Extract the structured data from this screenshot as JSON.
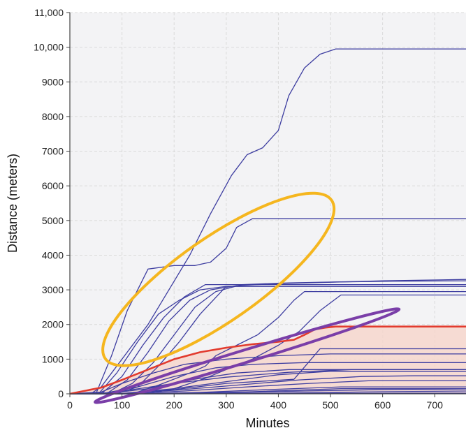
{
  "chart_data": {
    "type": "line",
    "xlabel": "Minutes",
    "ylabel": "Distance (meters)",
    "xlim": [
      0,
      760
    ],
    "ylim": [
      0,
      11000
    ],
    "grid": true,
    "x_ticks": [
      0,
      100,
      200,
      300,
      400,
      500,
      600,
      700
    ],
    "x_tick_labels": [
      "0",
      "100",
      "200",
      "300",
      "400",
      "500",
      "600",
      "700"
    ],
    "y_ticks": [
      0,
      1000,
      2000,
      3000,
      4000,
      5000,
      6000,
      7000,
      8000,
      9000,
      10000,
      11000
    ],
    "y_tick_labels": [
      "0",
      "1000",
      "2000",
      "3000",
      "4000",
      "5000",
      "6000",
      "7000",
      "8000",
      "9000",
      "10,000",
      "11,000"
    ],
    "colors": {
      "series": "#3d3da0",
      "highlight": "#e23b2e",
      "shade": "#f6d6cc",
      "orange_ellipse": "#f5b61e",
      "purple_ellipse": "#7a3ea8",
      "plot_background": "#f3f3f5",
      "grid": "#dadada"
    },
    "highlight_series": {
      "name": "highlighted",
      "x": [
        0,
        60,
        100,
        150,
        200,
        250,
        300,
        350,
        400,
        430,
        450,
        470,
        490,
        510,
        760
      ],
      "y": [
        0,
        180,
        400,
        700,
        1000,
        1200,
        1330,
        1430,
        1500,
        1560,
        1700,
        1860,
        1910,
        1940,
        1940
      ]
    },
    "series": [
      {
        "name": "s1",
        "x": [
          0,
          40,
          60,
          80,
          110,
          150,
          190,
          230,
          270,
          310,
          340,
          370,
          400,
          420,
          450,
          480,
          510,
          760
        ],
        "y": [
          0,
          0,
          200,
          600,
          1200,
          2000,
          3000,
          4000,
          5200,
          6300,
          6900,
          7100,
          7600,
          8600,
          9400,
          9800,
          9950,
          9950
        ]
      },
      {
        "name": "s2",
        "x": [
          0,
          50,
          80,
          110,
          150,
          200,
          240,
          270,
          300,
          320,
          350,
          760
        ],
        "y": [
          0,
          0,
          1100,
          2400,
          3600,
          3700,
          3700,
          3800,
          4200,
          4800,
          5050,
          5050
        ]
      },
      {
        "name": "s3",
        "x": [
          0,
          55,
          90,
          130,
          170,
          210,
          250,
          300,
          760
        ],
        "y": [
          0,
          0,
          600,
          1500,
          2300,
          2700,
          3000,
          3100,
          3100
        ]
      },
      {
        "name": "s4",
        "x": [
          0,
          60,
          100,
          140,
          180,
          220,
          260,
          760
        ],
        "y": [
          0,
          0,
          500,
          1400,
          2200,
          2800,
          3150,
          3150
        ]
      },
      {
        "name": "s5",
        "x": [
          0,
          70,
          110,
          150,
          190,
          230,
          270,
          320,
          400,
          500,
          600,
          760
        ],
        "y": [
          0,
          0,
          400,
          1200,
          2100,
          2700,
          3000,
          3120,
          3180,
          3220,
          3260,
          3300
        ]
      },
      {
        "name": "s6",
        "x": [
          0,
          80,
          120,
          160,
          200,
          240,
          280,
          330,
          420,
          520,
          620,
          760
        ],
        "y": [
          0,
          0,
          300,
          900,
          1700,
          2500,
          2950,
          3150,
          3200,
          3230,
          3250,
          3260
        ]
      },
      {
        "name": "s7",
        "x": [
          0,
          90,
          130,
          170,
          210,
          250,
          300,
          760
        ],
        "y": [
          0,
          0,
          200,
          800,
          1500,
          2300,
          3100,
          3100
        ]
      },
      {
        "name": "s8",
        "x": [
          0,
          120,
          170,
          230,
          260,
          280,
          320,
          360,
          400,
          430,
          450,
          760
        ],
        "y": [
          0,
          0,
          250,
          600,
          800,
          1100,
          1400,
          1700,
          2200,
          2700,
          2950,
          2950
        ]
      },
      {
        "name": "s9",
        "x": [
          0,
          150,
          200,
          260,
          300,
          350,
          400,
          440,
          480,
          520,
          760
        ],
        "y": [
          0,
          0,
          150,
          450,
          700,
          1000,
          1400,
          1800,
          2400,
          2850,
          2850
        ]
      },
      {
        "name": "s10",
        "x": [
          0,
          60,
          100,
          160,
          220,
          300,
          400,
          500,
          760
        ],
        "y": [
          0,
          50,
          300,
          600,
          850,
          1000,
          1100,
          1150,
          1150
        ]
      },
      {
        "name": "s11",
        "x": [
          0,
          70,
          130,
          200,
          280,
          350,
          450,
          760
        ],
        "y": [
          0,
          30,
          200,
          500,
          750,
          850,
          900,
          900
        ]
      },
      {
        "name": "s12",
        "x": [
          0,
          80,
          150,
          230,
          320,
          420,
          760
        ],
        "y": [
          0,
          20,
          150,
          400,
          600,
          700,
          700
        ]
      },
      {
        "name": "s13",
        "x": [
          0,
          100,
          200,
          300,
          400,
          500,
          760
        ],
        "y": [
          0,
          10,
          150,
          350,
          550,
          650,
          650
        ]
      },
      {
        "name": "s14",
        "x": [
          0,
          90,
          200,
          320,
          440,
          560,
          660,
          760
        ],
        "y": [
          0,
          0,
          100,
          250,
          400,
          500,
          520,
          520
        ]
      },
      {
        "name": "s15",
        "x": [
          0,
          110,
          220,
          340,
          460,
          580,
          760
        ],
        "y": [
          0,
          0,
          80,
          200,
          300,
          380,
          380
        ]
      },
      {
        "name": "s16",
        "x": [
          0,
          60,
          120,
          200,
          300,
          420,
          540,
          760
        ],
        "y": [
          0,
          0,
          120,
          300,
          480,
          620,
          700,
          700
        ]
      },
      {
        "name": "s17",
        "x": [
          0,
          100,
          200,
          300,
          430,
          480,
          760
        ],
        "y": [
          0,
          0,
          120,
          300,
          420,
          1300,
          1300
        ]
      },
      {
        "name": "s18",
        "x": [
          0,
          130,
          250,
          380,
          520,
          760
        ],
        "y": [
          0,
          0,
          40,
          120,
          200,
          200
        ]
      },
      {
        "name": "s19",
        "x": [
          0,
          150,
          300,
          450,
          600,
          760
        ],
        "y": [
          0,
          0,
          30,
          80,
          120,
          140
        ]
      },
      {
        "name": "s20",
        "x": [
          0,
          200,
          400,
          600,
          760
        ],
        "y": [
          0,
          0,
          20,
          60,
          80
        ]
      },
      {
        "name": "s21",
        "x": [
          0,
          180,
          350,
          520,
          760
        ],
        "y": [
          0,
          0,
          60,
          150,
          150
        ]
      },
      {
        "name": "s22",
        "x": [
          0,
          250,
          500,
          760
        ],
        "y": [
          0,
          0,
          15,
          20
        ]
      }
    ],
    "annotations": [
      {
        "shape": "ellipse",
        "color": "orange",
        "center": [
          285,
          3300
        ],
        "semi_axis_minutes": 265,
        "semi_axis_meters": 1200,
        "tilt_degrees": -35
      },
      {
        "shape": "ellipse",
        "color": "purple",
        "center": [
          340,
          1100
        ],
        "semi_axis_minutes": 305,
        "semi_axis_meters": 180,
        "tilt_degrees": -17
      }
    ]
  }
}
